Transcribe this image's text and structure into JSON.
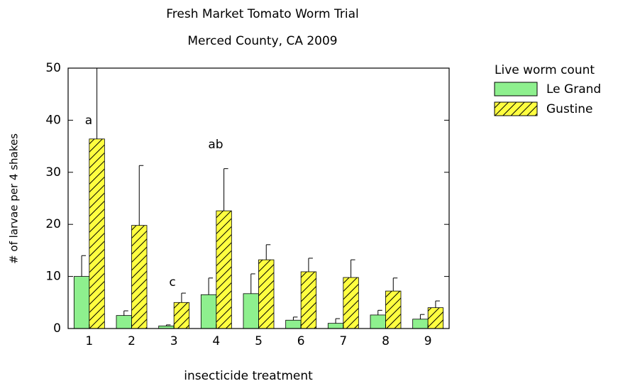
{
  "chart_data": {
    "type": "bar",
    "title": "Fresh Market Tomato Worm Trial",
    "subtitle": "Merced County, CA 2009",
    "x_label": "insecticide treatment",
    "y_label": "# of larvae per 4 shakes",
    "legend_title": "Live worm count",
    "categories": [
      "1",
      "2",
      "3",
      "4",
      "5",
      "6",
      "7",
      "8",
      "9"
    ],
    "series": [
      {
        "name": "Le Grand",
        "color": "#8ef08e",
        "values": [
          10,
          2.5,
          0.5,
          6.5,
          6.7,
          1.6,
          1.0,
          2.6,
          1.8
        ],
        "errors": [
          4,
          0.9,
          0.2,
          3.2,
          3.8,
          0.6,
          0.9,
          0.9,
          0.9
        ]
      },
      {
        "name": "Gustine",
        "color": "#ffff40",
        "hatch": true,
        "values": [
          36.4,
          19.8,
          5.0,
          22.6,
          13.2,
          10.9,
          9.8,
          7.2,
          4.0
        ],
        "errors": [
          15,
          11.5,
          1.8,
          8.1,
          2.9,
          2.6,
          3.4,
          2.5,
          1.3
        ]
      }
    ],
    "annotations": [
      "a",
      "c",
      "ab"
    ],
    "ylim": [
      0,
      50
    ],
    "yticks": [
      0,
      10,
      20,
      30,
      40,
      50
    ],
    "legend": "outside-right"
  }
}
